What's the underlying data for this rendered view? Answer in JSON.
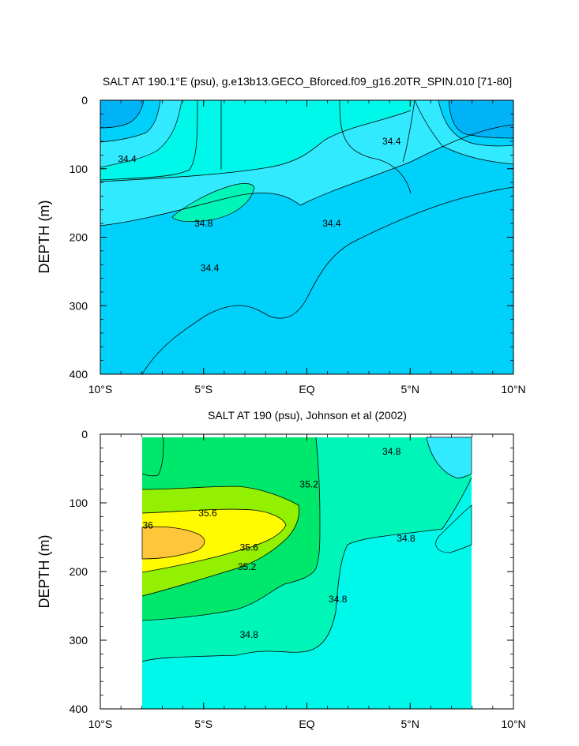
{
  "chart_data": [
    {
      "type": "heatmap",
      "subtype": "filled-contour",
      "title": "SALT AT 190.1°E (psu), g.e13b13.GECO_Bforced.f09_g16.20TR_SPIN.010 [71-80]",
      "ylabel": "DEPTH (m)",
      "xlabel": "",
      "x_ticks": [
        "10°S",
        "5°S",
        "EQ",
        "5°N",
        "10°N"
      ],
      "y_ticks": [
        "0",
        "100",
        "200",
        "300",
        "400"
      ],
      "xlim": [
        -10,
        10
      ],
      "ylim": [
        400,
        0
      ],
      "contour_labels": [
        {
          "text": "34.4",
          "x": -8.7,
          "y": 86
        },
        {
          "text": "34.8",
          "x": -5.0,
          "y": 180
        },
        {
          "text": "34.4",
          "x": 1.2,
          "y": 180
        },
        {
          "text": "34.4",
          "x": -4.7,
          "y": 245
        },
        {
          "text": "34.4",
          "x": 4.1,
          "y": 60
        }
      ]
    },
    {
      "type": "heatmap",
      "subtype": "filled-contour",
      "title": "SALT AT 190 (psu), Johnson et al (2002)",
      "ylabel": "DEPTH (m)",
      "xlabel": "",
      "x_ticks": [
        "10°S",
        "5°S",
        "EQ",
        "5°N",
        "10°N"
      ],
      "y_ticks": [
        "0",
        "100",
        "200",
        "300",
        "400"
      ],
      "xlim": [
        -10,
        10
      ],
      "ylim": [
        400,
        0
      ],
      "contour_labels": [
        {
          "text": "36",
          "x": -7.7,
          "y": 133
        },
        {
          "text": "35.6",
          "x": -4.8,
          "y": 115
        },
        {
          "text": "35.6",
          "x": -2.8,
          "y": 165
        },
        {
          "text": "35.2",
          "x": -2.9,
          "y": 193
        },
        {
          "text": "35.2",
          "x": 0.1,
          "y": 73
        },
        {
          "text": "34.8",
          "x": -2.8,
          "y": 292
        },
        {
          "text": "34.8",
          "x": 1.5,
          "y": 240
        },
        {
          "text": "34.8",
          "x": 4.8,
          "y": 152
        },
        {
          "text": "34.8",
          "x": 4.1,
          "y": 25
        }
      ]
    }
  ],
  "colors": {
    "fill_lowest": "#00b2f6",
    "fill_low": "#00d1fa",
    "fill_mid_low": "#32eaff",
    "fill_mid": "#00f8ea",
    "fill_mid_high": "#00f5b9",
    "fill_green": "#00e86b",
    "fill_lime": "#92f000",
    "fill_yellow": "#fffb00",
    "fill_orange": "#ffc63c"
  }
}
